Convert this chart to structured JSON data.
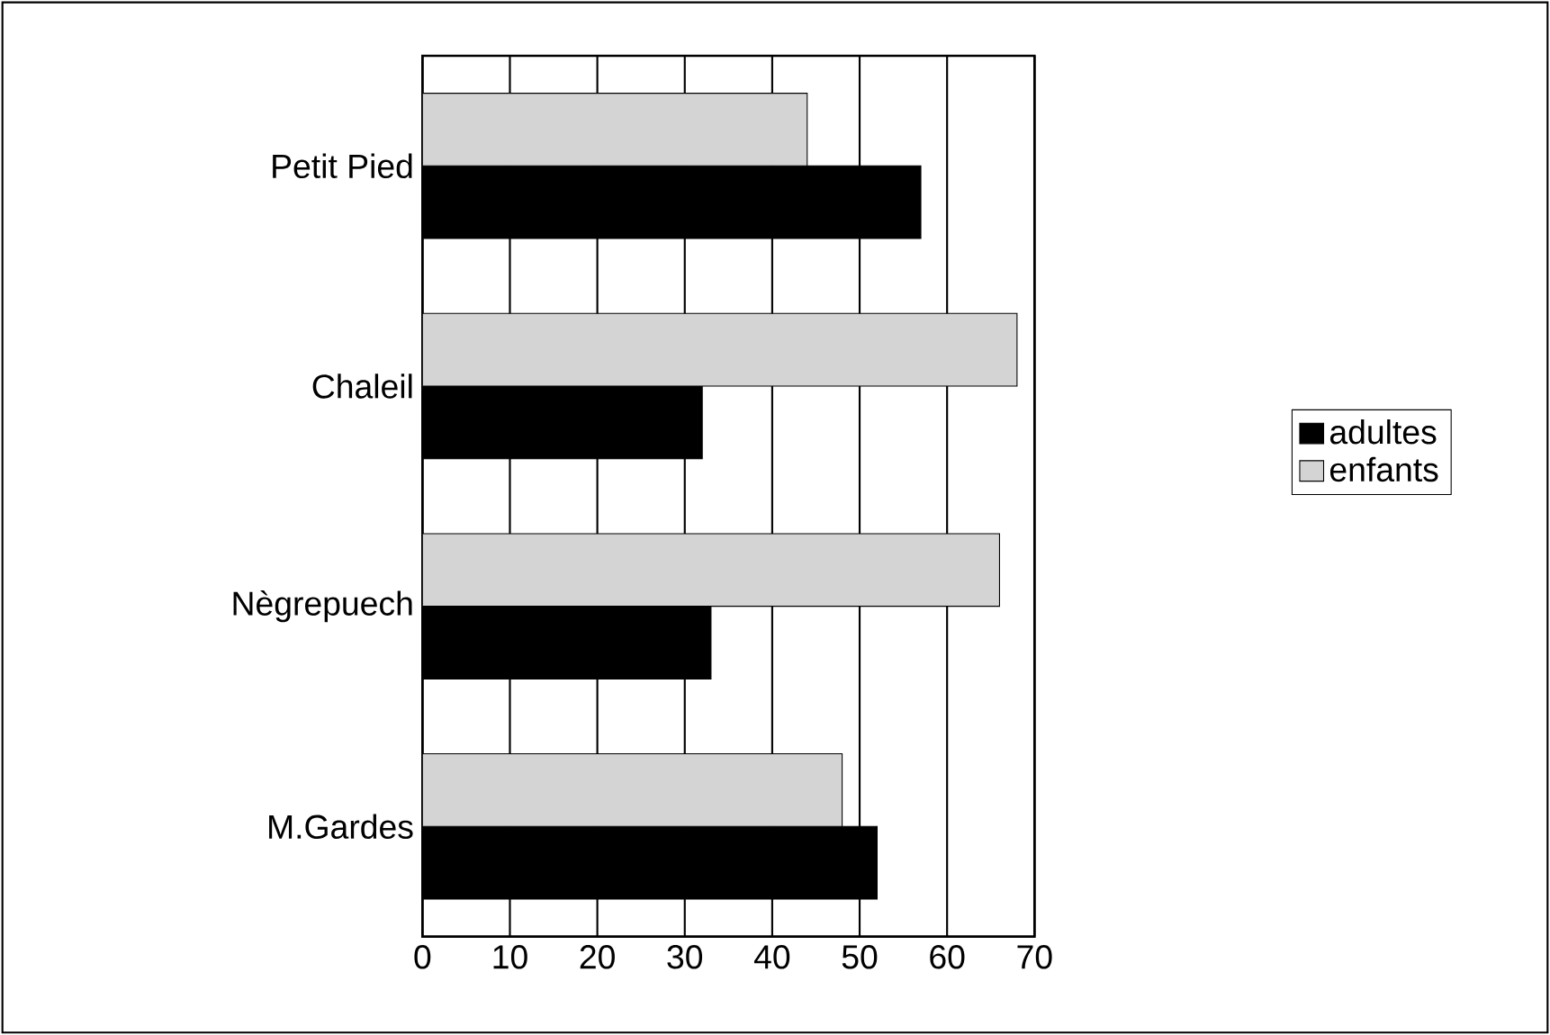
{
  "chart_data": {
    "type": "bar",
    "orientation": "horizontal",
    "categories": [
      "Petit Pied",
      "Chaleil",
      "Nègrepuech",
      "M.Gardes"
    ],
    "series": [
      {
        "name": "adultes",
        "color": "#000000",
        "values": [
          57,
          32,
          33,
          52
        ]
      },
      {
        "name": "enfants",
        "color": "#d4d4d4",
        "values": [
          44,
          68,
          66,
          48
        ]
      }
    ],
    "xlim": [
      0,
      70
    ],
    "xticks": [
      0,
      10,
      20,
      30,
      40,
      50,
      60,
      70
    ],
    "grid": "x",
    "legend": "right"
  }
}
